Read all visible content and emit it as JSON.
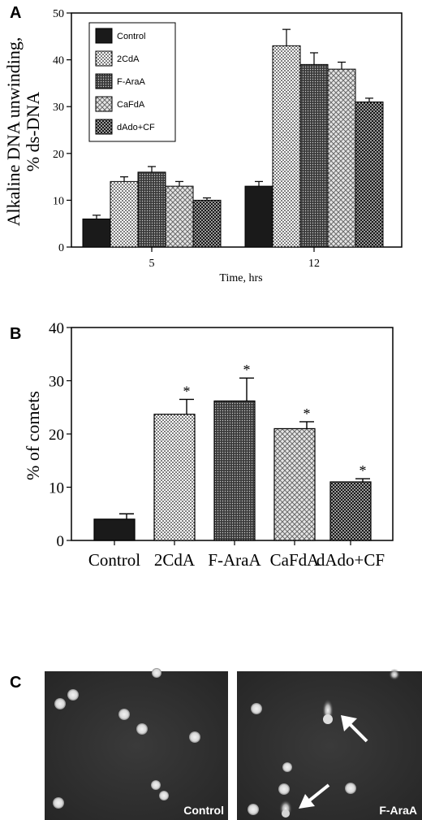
{
  "panels": {
    "a": {
      "letter": "A"
    },
    "b": {
      "letter": "B"
    },
    "c": {
      "letter": "C"
    }
  },
  "chart_data": [
    {
      "type": "bar",
      "panel": "A",
      "title": "",
      "xlabel": "Time, hrs",
      "ylabel": "Alkaline DNA unwinding, % ds-DNA",
      "ylabel_line1": "Alkaline DNA unwinding,",
      "ylabel_line2": "% ds-DNA",
      "ylim": [
        0,
        50
      ],
      "yticks": [
        "0",
        "10",
        "20",
        "30",
        "40",
        "50"
      ],
      "categories": [
        "5",
        "12"
      ],
      "legend_position": "top-left",
      "grid": false,
      "series": [
        {
          "name": "Control",
          "values": [
            6,
            13
          ],
          "errors": [
            0.8,
            1.0
          ],
          "pattern": "solid"
        },
        {
          "name": "2CdA",
          "values": [
            14,
            43
          ],
          "errors": [
            1.0,
            3.5
          ],
          "pattern": "dots"
        },
        {
          "name": "F-AraA",
          "values": [
            16,
            39
          ],
          "errors": [
            1.2,
            2.5
          ],
          "pattern": "dense"
        },
        {
          "name": "CaFdA",
          "values": [
            13,
            38
          ],
          "errors": [
            1.0,
            1.5
          ],
          "pattern": "cross"
        },
        {
          "name": "dAdo+CF",
          "values": [
            10,
            31
          ],
          "errors": [
            0.5,
            0.8
          ],
          "pattern": "check"
        }
      ]
    },
    {
      "type": "bar",
      "panel": "B",
      "title": "",
      "xlabel": "",
      "ylabel": "% of comets",
      "ylim": [
        0,
        40
      ],
      "yticks": [
        "0",
        "10",
        "20",
        "30",
        "40"
      ],
      "categories": [
        "Control",
        "2CdA",
        "F-AraA",
        "CaFdA",
        "dAdo+CF"
      ],
      "values": [
        4,
        23.7,
        26.2,
        21,
        11
      ],
      "errors": [
        1.0,
        2.8,
        4.3,
        1.3,
        0.6
      ],
      "significance": [
        "",
        "*",
        "*",
        "*",
        "*"
      ],
      "patterns": [
        "solid",
        "dots",
        "dense",
        "cross",
        "check"
      ],
      "grid": false
    }
  ],
  "micrographs": {
    "left_label": "Control",
    "right_label": "F-AraA"
  }
}
